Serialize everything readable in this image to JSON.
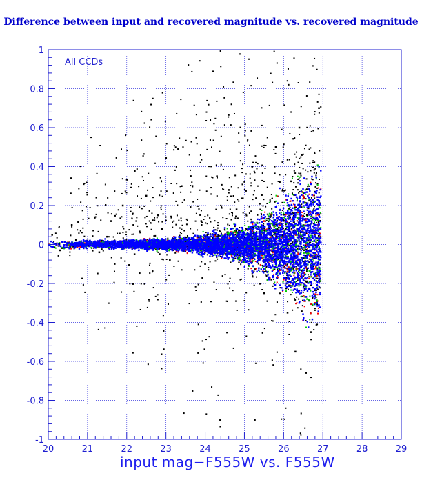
{
  "chart_data": {
    "type": "scatter",
    "title": "Difference between input and recovered magnitude vs. recovered magnitude",
    "xlabel": "input mag−F555W vs. F555W",
    "ylabel": "",
    "annotation": "All CCDs",
    "xlim": [
      20,
      29
    ],
    "ylim": [
      -1,
      1
    ],
    "grid": true,
    "x_ticks": [
      "20",
      "21",
      "22",
      "23",
      "24",
      "25",
      "26",
      "27",
      "28",
      "29"
    ],
    "y_ticks": [
      "1",
      "0.8",
      "0.6",
      "0.4",
      "0.2",
      "0",
      "-0.2",
      "-0.4",
      "-0.6",
      "-0.8",
      "-1"
    ],
    "completeness_limit_mag": 26.95,
    "series": [
      {
        "color": "#000000",
        "points": [
          [
            20.1,
            0.05
          ],
          [
            20.3,
            -0.03
          ],
          [
            20.6,
            0.1
          ],
          [
            21.0,
            0.02
          ],
          [
            21.3,
            -0.04
          ],
          [
            21.6,
            0.12
          ],
          [
            21.9,
            0.2
          ],
          [
            22.2,
            -0.05
          ],
          [
            22.5,
            0.25
          ],
          [
            22.8,
            0.15
          ],
          [
            23.1,
            -0.08
          ],
          [
            23.4,
            0.3
          ],
          [
            23.7,
            0.22
          ],
          [
            24.0,
            -0.1
          ],
          [
            24.3,
            0.35
          ],
          [
            24.6,
            0.28
          ],
          [
            24.9,
            -0.18
          ],
          [
            25.2,
            0.4
          ],
          [
            25.5,
            -0.25
          ],
          [
            25.8,
            0.5
          ],
          [
            26.1,
            -0.35
          ],
          [
            26.4,
            0.6
          ],
          [
            26.7,
            -0.45
          ],
          [
            26.9,
            0.7
          ],
          [
            26.3,
            -0.55
          ],
          [
            25.9,
            0.32
          ],
          [
            24.8,
            0.18
          ],
          [
            23.9,
            0.12
          ],
          [
            22.9,
            0.08
          ],
          [
            21.5,
            0.04
          ]
        ]
      },
      {
        "color": "#ff0000",
        "points": [
          [
            20.5,
            0.01
          ],
          [
            21.5,
            -0.01
          ],
          [
            22.5,
            0.02
          ],
          [
            23.5,
            -0.03
          ],
          [
            24.5,
            0.05
          ],
          [
            25.0,
            -0.08
          ],
          [
            25.5,
            0.12
          ],
          [
            26.0,
            -0.18
          ],
          [
            26.5,
            0.25
          ],
          [
            26.8,
            -0.3
          ]
        ]
      },
      {
        "color": "#00cc00",
        "points": [
          [
            20.4,
            -0.02
          ],
          [
            21.4,
            0.01
          ],
          [
            22.4,
            -0.02
          ],
          [
            23.4,
            0.03
          ],
          [
            24.4,
            -0.05
          ],
          [
            25.1,
            0.09
          ],
          [
            25.6,
            -0.14
          ],
          [
            26.1,
            0.2
          ],
          [
            26.6,
            -0.28
          ],
          [
            26.9,
            0.4
          ]
        ]
      },
      {
        "color": "#0000ff",
        "points": [
          [
            20.2,
            0.0
          ],
          [
            21.2,
            0.01
          ],
          [
            22.2,
            -0.01
          ],
          [
            23.2,
            0.0
          ],
          [
            24.2,
            0.02
          ],
          [
            24.7,
            -0.03
          ],
          [
            25.3,
            0.06
          ],
          [
            25.8,
            -0.1
          ],
          [
            26.3,
            0.14
          ],
          [
            26.8,
            -0.16
          ]
        ]
      }
    ]
  }
}
